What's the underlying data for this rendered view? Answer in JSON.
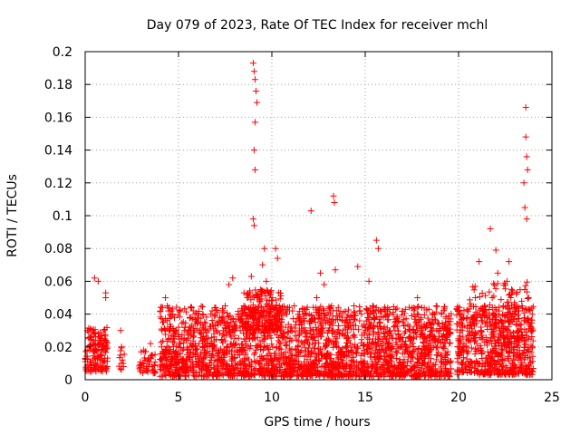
{
  "chart_data": {
    "type": "scatter",
    "title": "Day 079 of 2023, Rate Of TEC Index for receiver mchl",
    "xlabel": "GPS time / hours",
    "ylabel": "ROTI / TECUs",
    "xlim": [
      0,
      25
    ],
    "ylim": [
      0,
      0.2
    ],
    "xticks": [
      0,
      5,
      10,
      15,
      20,
      25
    ],
    "xtick_labels": [
      "0",
      "5",
      "10",
      "15",
      "20",
      "25"
    ],
    "yticks": [
      0,
      0.02,
      0.04,
      0.06,
      0.08,
      0.1,
      0.12,
      0.14,
      0.16,
      0.18,
      0.2
    ],
    "ytick_labels": [
      "0",
      "0.02",
      "0.04",
      "0.06",
      "0.08",
      "0.1",
      "0.12",
      "0.14",
      "0.16",
      "0.18",
      "0.2"
    ],
    "grid": true,
    "marker": "+",
    "color": "#ff0000",
    "series": [
      {
        "name": "ROTI",
        "points": [
          [
            0.1,
            0.018
          ],
          [
            0.2,
            0.025
          ],
          [
            0.3,
            0.031
          ],
          [
            0.4,
            0.012
          ],
          [
            0.5,
            0.022
          ],
          [
            0.6,
            0.009
          ],
          [
            0.7,
            0.028
          ],
          [
            0.8,
            0.015
          ],
          [
            0.9,
            0.02
          ],
          [
            1.0,
            0.03
          ],
          [
            1.05,
            0.013
          ],
          [
            1.1,
            0.024
          ],
          [
            0.5,
            0.062
          ],
          [
            0.7,
            0.06
          ],
          [
            1.1,
            0.053
          ],
          [
            1.1,
            0.05
          ],
          [
            1.9,
            0.03
          ],
          [
            1.95,
            0.02
          ],
          [
            2.0,
            0.012
          ],
          [
            2.05,
            0.008
          ],
          [
            3.0,
            0.017
          ],
          [
            3.1,
            0.01
          ],
          [
            3.2,
            0.012
          ],
          [
            3.3,
            0.008
          ],
          [
            3.5,
            0.022
          ],
          [
            3.6,
            0.015
          ],
          [
            3.7,
            0.009
          ],
          [
            4.1,
            0.02
          ],
          [
            4.2,
            0.035
          ],
          [
            4.3,
            0.05
          ],
          [
            4.4,
            0.045
          ],
          [
            4.5,
            0.03
          ],
          [
            4.6,
            0.025
          ],
          [
            4.7,
            0.04
          ],
          [
            4.8,
            0.028
          ],
          [
            4.9,
            0.015
          ],
          [
            5.0,
            0.032
          ],
          [
            5.1,
            0.022
          ],
          [
            5.2,
            0.018
          ],
          [
            5.3,
            0.03
          ],
          [
            5.4,
            0.012
          ],
          [
            5.5,
            0.025
          ],
          [
            5.6,
            0.038
          ],
          [
            5.7,
            0.02
          ],
          [
            5.8,
            0.03
          ],
          [
            5.9,
            0.014
          ],
          [
            6.0,
            0.035
          ],
          [
            6.1,
            0.022
          ],
          [
            6.2,
            0.028
          ],
          [
            6.3,
            0.04
          ],
          [
            6.4,
            0.018
          ],
          [
            6.5,
            0.025
          ],
          [
            6.6,
            0.03
          ],
          [
            6.7,
            0.012
          ],
          [
            6.8,
            0.042
          ],
          [
            6.9,
            0.02
          ],
          [
            7.0,
            0.03
          ],
          [
            7.1,
            0.016
          ],
          [
            7.2,
            0.038
          ],
          [
            7.3,
            0.024
          ],
          [
            7.4,
            0.03
          ],
          [
            7.5,
            0.045
          ],
          [
            7.6,
            0.02
          ],
          [
            7.7,
            0.058
          ],
          [
            7.8,
            0.035
          ],
          [
            7.9,
            0.062
          ],
          [
            8.0,
            0.03
          ],
          [
            8.1,
            0.022
          ],
          [
            8.2,
            0.04
          ],
          [
            8.3,
            0.018
          ],
          [
            8.4,
            0.035
          ],
          [
            8.5,
            0.045
          ],
          [
            8.6,
            0.025
          ],
          [
            8.7,
            0.05
          ],
          [
            8.8,
            0.03
          ],
          [
            8.9,
            0.063
          ],
          [
            9.0,
            0.04
          ],
          [
            9.1,
            0.025
          ],
          [
            9.2,
            0.05
          ],
          [
            9.3,
            0.03
          ],
          [
            9.4,
            0.055
          ],
          [
            9.5,
            0.07
          ],
          [
            9.6,
            0.08
          ],
          [
            9.7,
            0.06
          ],
          [
            9.8,
            0.045
          ],
          [
            9.9,
            0.035
          ],
          [
            10.0,
            0.05
          ],
          [
            10.1,
            0.03
          ],
          [
            10.2,
            0.08
          ],
          [
            10.3,
            0.074
          ],
          [
            10.4,
            0.045
          ],
          [
            10.5,
            0.035
          ],
          [
            10.6,
            0.028
          ],
          [
            10.8,
            0.04
          ],
          [
            11.0,
            0.03
          ],
          [
            11.2,
            0.045
          ],
          [
            11.4,
            0.02
          ],
          [
            11.6,
            0.035
          ],
          [
            11.8,
            0.03
          ],
          [
            12.0,
            0.04
          ],
          [
            12.2,
            0.025
          ],
          [
            12.4,
            0.05
          ],
          [
            12.6,
            0.065
          ],
          [
            12.8,
            0.058
          ],
          [
            13.0,
            0.035
          ],
          [
            13.2,
            0.045
          ],
          [
            13.4,
            0.067
          ],
          [
            13.6,
            0.04
          ],
          [
            13.8,
            0.03
          ],
          [
            14.0,
            0.025
          ],
          [
            14.2,
            0.035
          ],
          [
            14.4,
            0.045
          ],
          [
            14.6,
            0.069
          ],
          [
            14.8,
            0.04
          ],
          [
            15.0,
            0.03
          ],
          [
            15.2,
            0.06
          ],
          [
            15.4,
            0.045
          ],
          [
            15.6,
            0.085
          ],
          [
            15.7,
            0.08
          ],
          [
            15.8,
            0.035
          ],
          [
            16.0,
            0.028
          ],
          [
            16.2,
            0.04
          ],
          [
            16.4,
            0.02
          ],
          [
            16.6,
            0.03
          ],
          [
            16.8,
            0.025
          ],
          [
            17.0,
            0.035
          ],
          [
            17.2,
            0.02
          ],
          [
            17.4,
            0.03
          ],
          [
            17.6,
            0.025
          ],
          [
            17.8,
            0.05
          ],
          [
            18.0,
            0.03
          ],
          [
            18.2,
            0.02
          ],
          [
            18.4,
            0.035
          ],
          [
            18.6,
            0.025
          ],
          [
            18.8,
            0.045
          ],
          [
            19.0,
            0.03
          ],
          [
            19.2,
            0.02
          ],
          [
            19.4,
            0.015
          ],
          [
            9.0,
            0.193
          ],
          [
            9.05,
            0.188
          ],
          [
            9.1,
            0.183
          ],
          [
            9.15,
            0.176
          ],
          [
            9.2,
            0.169
          ],
          [
            9.1,
            0.157
          ],
          [
            9.05,
            0.14
          ],
          [
            9.1,
            0.128
          ],
          [
            9.0,
            0.098
          ],
          [
            9.05,
            0.094
          ],
          [
            12.1,
            0.103
          ],
          [
            13.3,
            0.112
          ],
          [
            13.35,
            0.108
          ],
          [
            20.0,
            0.025
          ],
          [
            20.1,
            0.04
          ],
          [
            20.2,
            0.03
          ],
          [
            20.4,
            0.02
          ],
          [
            20.6,
            0.035
          ],
          [
            20.8,
            0.025
          ],
          [
            20.9,
            0.05
          ],
          [
            21.0,
            0.04
          ],
          [
            21.1,
            0.072
          ],
          [
            21.2,
            0.03
          ],
          [
            21.4,
            0.045
          ],
          [
            21.5,
            0.035
          ],
          [
            21.7,
            0.092
          ],
          [
            21.8,
            0.05
          ],
          [
            21.9,
            0.04
          ],
          [
            22.0,
            0.079
          ],
          [
            22.1,
            0.065
          ],
          [
            22.2,
            0.03
          ],
          [
            22.4,
            0.045
          ],
          [
            22.5,
            0.025
          ],
          [
            22.6,
            0.06
          ],
          [
            22.7,
            0.072
          ],
          [
            22.8,
            0.05
          ],
          [
            23.0,
            0.04
          ],
          [
            23.2,
            0.03
          ],
          [
            23.4,
            0.045
          ],
          [
            23.5,
            0.12
          ],
          [
            23.55,
            0.105
          ],
          [
            23.6,
            0.148
          ],
          [
            23.65,
            0.136
          ],
          [
            23.7,
            0.128
          ],
          [
            23.6,
            0.166
          ],
          [
            23.65,
            0.098
          ],
          [
            23.75,
            0.05
          ],
          [
            23.85,
            0.03
          ],
          [
            23.95,
            0.02
          ]
        ],
        "bands": [
          {
            "x": [
              0.0,
              1.2
            ],
            "low": 0.005,
            "high": 0.032,
            "count": 140
          },
          {
            "x": [
              1.8,
              2.1
            ],
            "low": 0.006,
            "high": 0.02,
            "count": 10
          },
          {
            "x": [
              2.9,
              3.8
            ],
            "low": 0.004,
            "high": 0.018,
            "count": 40
          },
          {
            "x": [
              4.0,
              19.6
            ],
            "low": 0.002,
            "high": 0.045,
            "count": 2400
          },
          {
            "x": [
              8.5,
              10.5
            ],
            "low": 0.03,
            "high": 0.055,
            "count": 180
          },
          {
            "x": [
              19.9,
              24.0
            ],
            "low": 0.003,
            "high": 0.045,
            "count": 620
          },
          {
            "x": [
              20.5,
              23.8
            ],
            "low": 0.035,
            "high": 0.06,
            "count": 90
          }
        ]
      }
    ]
  }
}
